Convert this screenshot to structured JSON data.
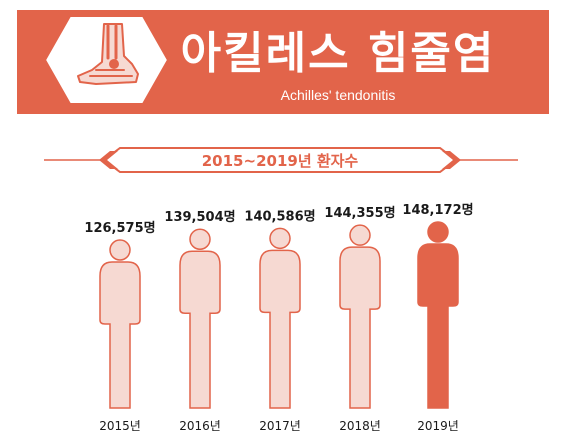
{
  "header": {
    "title_ko": "아킬레스 힘줄염",
    "title_en": "Achilles' tendonitis"
  },
  "section": {
    "heading": "2015~2019년 환자수"
  },
  "colors": {
    "brand": "#e2644a",
    "figure_light": "#f6d9d2",
    "figure_stroke": "#e2644a",
    "figure_highlight": "#e2644a",
    "text_dark": "#1a1a1a"
  },
  "chart_data": {
    "type": "bar",
    "title": "2015~2019년 환자수",
    "categories": [
      "2015년",
      "2016년",
      "2017년",
      "2018년",
      "2019년"
    ],
    "values": [
      126575,
      139504,
      140586,
      144355,
      148172
    ],
    "value_labels": [
      "126,575명",
      "139,504명",
      "140,586명",
      "144,355명",
      "148,172명"
    ],
    "unit": "명",
    "highlight_index": 4,
    "xlabel": "",
    "ylabel": "",
    "grid": false,
    "legend": "none"
  }
}
